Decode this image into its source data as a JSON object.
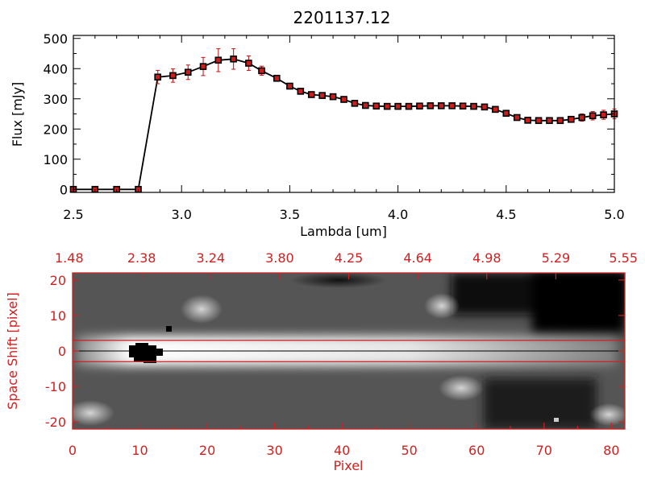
{
  "colors": {
    "axis_red": "#cc2222",
    "marker_red": "#c81e1e",
    "line": "#000000",
    "background": "#ffffff"
  },
  "chart_data": [
    {
      "type": "line",
      "title": "2201137.12",
      "xlabel": "Lambda [um]",
      "ylabel": "Flux [mJy]",
      "xlim": [
        2.5,
        5.0
      ],
      "ylim": [
        -10,
        510
      ],
      "xtick_values": [
        2.5,
        3.0,
        3.5,
        4.0,
        4.5,
        5.0
      ],
      "xtick_labels": [
        "2.5",
        "3.0",
        "3.5",
        "4.0",
        "4.5",
        "5.0"
      ],
      "ytick_values": [
        0,
        100,
        200,
        300,
        400,
        500
      ],
      "ytick_labels": [
        "0",
        "100",
        "200",
        "300",
        "400",
        "500"
      ],
      "grid": false,
      "series": [
        {
          "x": [
            2.5,
            2.6,
            2.7,
            2.8,
            2.89,
            2.96,
            3.03,
            3.1,
            3.17,
            3.24,
            3.31,
            3.37,
            3.44,
            3.5,
            3.55,
            3.6,
            3.65,
            3.7,
            3.75,
            3.8,
            3.85,
            3.9,
            3.95,
            4.0,
            4.05,
            4.1,
            4.15,
            4.2,
            4.25,
            4.3,
            4.35,
            4.4,
            4.45,
            4.5,
            4.55,
            4.6,
            4.65,
            4.7,
            4.75,
            4.8,
            4.85,
            4.9,
            4.95,
            5.0
          ],
          "y": [
            0,
            0,
            0,
            0,
            372,
            377,
            388,
            407,
            428,
            432,
            418,
            393,
            368,
            342,
            325,
            314,
            311,
            307,
            298,
            285,
            278,
            276,
            275,
            275,
            275,
            276,
            277,
            277,
            277,
            276,
            275,
            273,
            265,
            252,
            238,
            229,
            228,
            228,
            228,
            232,
            238,
            244,
            247,
            250
          ],
          "yerr": [
            0,
            0,
            0,
            0,
            22,
            22,
            24,
            30,
            38,
            34,
            24,
            15,
            10,
            8,
            6,
            5,
            5,
            5,
            5,
            5,
            5,
            5,
            5,
            5,
            5,
            5,
            5,
            5,
            5,
            5,
            5,
            5,
            5,
            5,
            6,
            7,
            8,
            8,
            9,
            10,
            12,
            14,
            15,
            16
          ]
        }
      ]
    },
    {
      "type": "heatmap",
      "xlabel": "Pixel",
      "ylabel": "Space Shift [pixel]",
      "xlim": [
        0,
        82
      ],
      "ylim": [
        -22,
        22
      ],
      "xtick_values": [
        0,
        10,
        20,
        30,
        40,
        50,
        60,
        70,
        80
      ],
      "xtick_labels": [
        "0",
        "10",
        "20",
        "30",
        "40",
        "50",
        "60",
        "70",
        "80"
      ],
      "ytick_values": [
        20,
        10,
        0,
        -10,
        -20
      ],
      "ytick_labels": [
        "20",
        "10",
        "0",
        "-10",
        "-20"
      ],
      "top_tick_labels": [
        "1.48",
        "2.38",
        "3.24",
        "3.80",
        "4.25",
        "4.64",
        "4.98",
        "5.29",
        "5.55"
      ],
      "extraction_lines_y": [
        3,
        -3
      ],
      "center_line_y": 0
    }
  ]
}
